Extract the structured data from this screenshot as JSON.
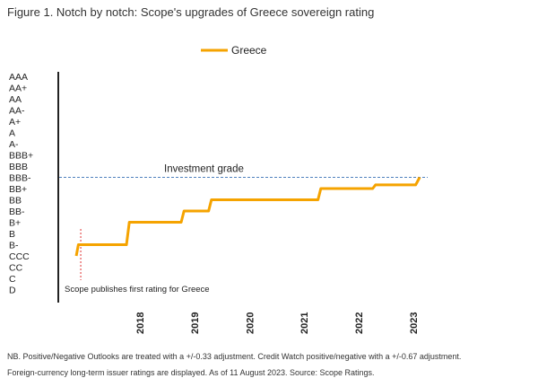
{
  "figure": {
    "title": "Figure 1. Notch by notch: Scope's upgrades of Greece sovereign rating"
  },
  "chart_data": {
    "type": "line",
    "series": [
      {
        "name": "Greece",
        "color": "#F5A300",
        "points": [
          {
            "x": "2017-05-01",
            "y": "CCC"
          },
          {
            "x": "2017-05-15",
            "y": "B-"
          },
          {
            "x": "2018-04-01",
            "y": "B-"
          },
          {
            "x": "2018-04-20",
            "y": "B+"
          },
          {
            "x": "2019-04-01",
            "y": "B+"
          },
          {
            "x": "2019-04-20",
            "y": "BB-"
          },
          {
            "x": "2019-10-01",
            "y": "BB-"
          },
          {
            "x": "2019-10-20",
            "y": "BB"
          },
          {
            "x": "2021-10-01",
            "y": "BB"
          },
          {
            "x": "2021-10-20",
            "y": "BB+"
          },
          {
            "x": "2022-10-01",
            "y": "BB+"
          },
          {
            "x": "2022-10-20",
            "y": "BB+ (positive outlook)"
          },
          {
            "x": "2023-07-15",
            "y": "BB+ (positive outlook)"
          },
          {
            "x": "2023-08-11",
            "y": "BBB-"
          }
        ]
      }
    ],
    "y_categories": [
      "AAA",
      "AA+",
      "AA",
      "AA-",
      "A+",
      "A",
      "A-",
      "BBB+",
      "BBB",
      "BBB-",
      "BB+",
      "BB",
      "BB-",
      "B+",
      "B",
      "B-",
      "CCC",
      "CC",
      "C",
      "D"
    ],
    "x_ticks": [
      "2018",
      "2019",
      "2020",
      "2021",
      "2022",
      "2023"
    ],
    "reference_line": {
      "label": "Investment grade",
      "y": "BBB-",
      "style": "dashed",
      "color": "#4F81BD"
    },
    "event_marker": {
      "label": "Scope publishes first rating for Greece",
      "x": "2017-05-01",
      "style": "dotted",
      "color": "#E03030"
    },
    "legend_position": "top-center",
    "grid": false
  },
  "notes": {
    "line1": "NB. Positive/Negative Outlooks are treated with a +/-0.33 adjustment. Credit Watch positive/negative with a +/-0.67 adjustment.",
    "line2": "Foreign-currency long-term issuer ratings are displayed. As of 11 August 2023. Source: Scope Ratings."
  }
}
